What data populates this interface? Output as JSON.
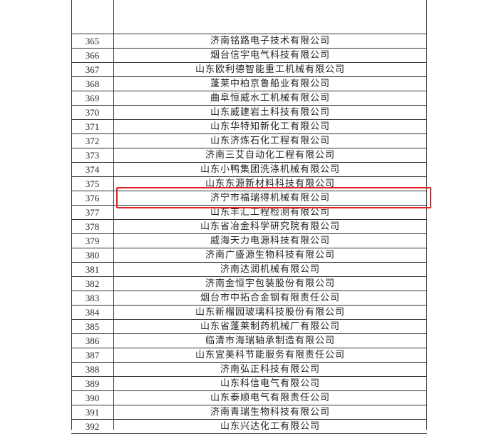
{
  "table": {
    "rows": [
      {
        "no": "365",
        "name": "济南铭路电子技术有限公司"
      },
      {
        "no": "366",
        "name": "烟台信宇电气科技有限公司"
      },
      {
        "no": "367",
        "name": "山东欧利德智能重工机械有限公司"
      },
      {
        "no": "368",
        "name": "蓬莱中柏京鲁船业有限公司"
      },
      {
        "no": "369",
        "name": "曲阜恒威水工机械有限公司"
      },
      {
        "no": "370",
        "name": "山东威建岩土科技有限公司"
      },
      {
        "no": "371",
        "name": "山东华特知新化工有限公司"
      },
      {
        "no": "372",
        "name": "山东济炼石化工程有限公司"
      },
      {
        "no": "373",
        "name": "济南三艾自动化工程有限公司"
      },
      {
        "no": "374",
        "name": "山东小鸭集团洗涤机械有限公司"
      },
      {
        "no": "375",
        "name": "山东东源新材料科技有限公司"
      },
      {
        "no": "376",
        "name": "济宁市福瑞得机械有限公司"
      },
      {
        "no": "377",
        "name": "山东丰汇工程检测有限公司"
      },
      {
        "no": "378",
        "name": "山东省冶金科学研究院有限公司"
      },
      {
        "no": "379",
        "name": "威海天力电源科技有限公司"
      },
      {
        "no": "380",
        "name": "济南广盛源生物科技有限公司"
      },
      {
        "no": "381",
        "name": "济南达润机械有限公司"
      },
      {
        "no": "382",
        "name": "济南金恒宇包装股份有限公司"
      },
      {
        "no": "383",
        "name": "烟台市中拓合金钢有限责任公司"
      },
      {
        "no": "384",
        "name": "山东新榴园玻璃科技股份有限公司"
      },
      {
        "no": "385",
        "name": "山东省蓬莱制药机械厂有限公司"
      },
      {
        "no": "386",
        "name": "临清市海瑞轴承制造有限公司"
      },
      {
        "no": "387",
        "name": "山东宜美科节能服务有限责任公司"
      },
      {
        "no": "388",
        "name": "济南弘正科技有限公司"
      },
      {
        "no": "389",
        "name": "山东科信电气有限公司"
      },
      {
        "no": "390",
        "name": "山东泰顺电气有限责任公司"
      },
      {
        "no": "391",
        "name": "济南青瑞生物科技有限公司"
      },
      {
        "no": "392",
        "name": "山东兴达化工有限公司"
      }
    ],
    "highlighted_row": "376",
    "highlight_color": "#e02020"
  }
}
